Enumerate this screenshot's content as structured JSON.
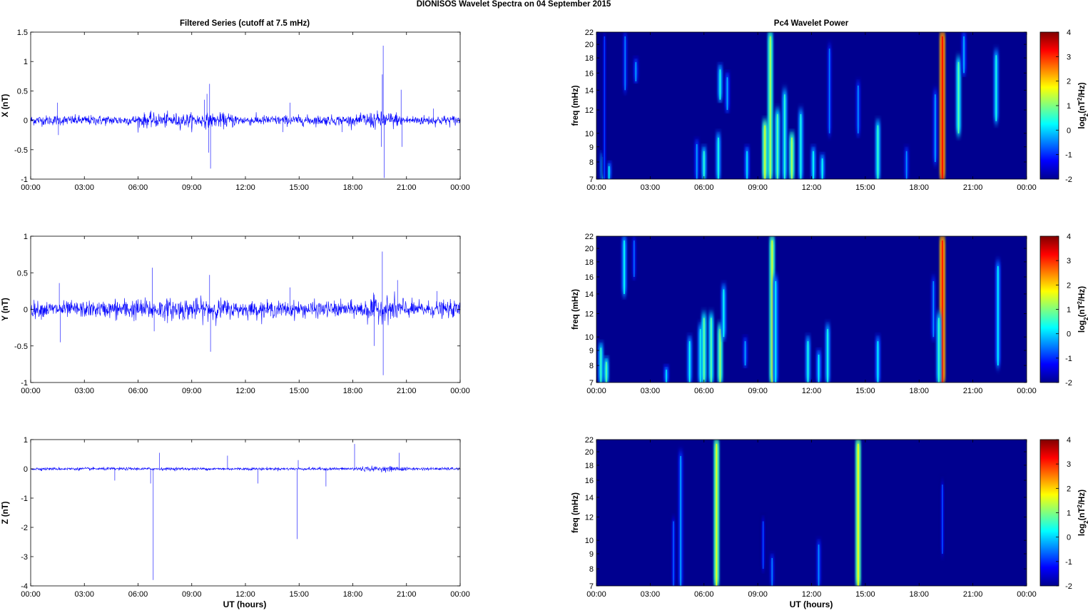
{
  "figure": {
    "title": "DIONISOS Wavelet Spectra on 04 September 2015",
    "left_column_title": "Filtered Series (cutoff at 7.5 mHz)",
    "right_column_title": "Pc4 Wavelet Power",
    "xlabel": "UT (hours)",
    "colors": {
      "trace": "#0000ff",
      "background_power": "#00008f"
    }
  },
  "chart_data": [
    {
      "type": "line",
      "ylabel": "X (nT)",
      "x_ticks": [
        "00:00",
        "03:00",
        "06:00",
        "09:00",
        "12:00",
        "15:00",
        "18:00",
        "21:00",
        "00:00"
      ],
      "x_range_hours": [
        0,
        24
      ],
      "ylim": [
        -1,
        1.5
      ],
      "y_ticks": [
        "-1",
        "-0.5",
        "0",
        "0.5",
        "1",
        "1.5"
      ],
      "noise_amplitude": 0.07,
      "active_intervals": [
        {
          "start": 6.0,
          "end": 11.5,
          "amp": 0.1
        },
        {
          "start": 18.5,
          "end": 20.5,
          "amp": 0.12
        }
      ],
      "spikes": [
        {
          "t": 9.7,
          "v": 0.35
        },
        {
          "t": 9.85,
          "v": 0.45
        },
        {
          "t": 10.0,
          "v": 0.62
        },
        {
          "t": 9.95,
          "v": -0.55
        },
        {
          "t": 10.05,
          "v": -0.82
        },
        {
          "t": 19.7,
          "v": 1.27
        },
        {
          "t": 19.65,
          "v": 0.78
        },
        {
          "t": 19.75,
          "v": -0.98
        },
        {
          "t": 19.6,
          "v": -0.45
        },
        {
          "t": 20.7,
          "v": 0.52
        },
        {
          "t": 20.75,
          "v": -0.45
        },
        {
          "t": 1.5,
          "v": 0.3
        },
        {
          "t": 1.55,
          "v": -0.25
        },
        {
          "t": 14.1,
          "v": -0.2
        },
        {
          "t": 14.5,
          "v": 0.3
        },
        {
          "t": 17.4,
          "v": -0.2
        },
        {
          "t": 22.5,
          "v": 0.2
        }
      ]
    },
    {
      "type": "line",
      "ylabel": "Y (nT)",
      "x_ticks": [
        "00:00",
        "03:00",
        "06:00",
        "09:00",
        "12:00",
        "15:00",
        "18:00",
        "21:00",
        "00:00"
      ],
      "x_range_hours": [
        0,
        24
      ],
      "ylim": [
        -1,
        1
      ],
      "y_ticks": [
        "-1",
        "-0.5",
        "0",
        "0.5",
        "1"
      ],
      "noise_amplitude": 0.09,
      "active_intervals": [
        {
          "start": 4.5,
          "end": 11.0,
          "amp": 0.12
        },
        {
          "start": 18.5,
          "end": 21.0,
          "amp": 0.14
        }
      ],
      "spikes": [
        {
          "t": 1.6,
          "v": 0.36
        },
        {
          "t": 1.65,
          "v": -0.45
        },
        {
          "t": 6.8,
          "v": 0.57
        },
        {
          "t": 6.9,
          "v": -0.3
        },
        {
          "t": 10.0,
          "v": 0.47
        },
        {
          "t": 10.05,
          "v": -0.58
        },
        {
          "t": 19.65,
          "v": 0.79
        },
        {
          "t": 19.7,
          "v": -0.9
        },
        {
          "t": 19.2,
          "v": -0.5
        },
        {
          "t": 14.5,
          "v": 0.3
        },
        {
          "t": 22.7,
          "v": 0.25
        },
        {
          "t": 20.5,
          "v": 0.4
        }
      ]
    },
    {
      "type": "line",
      "ylabel": "Z (nT)",
      "x_ticks": [
        "00:00",
        "03:00",
        "06:00",
        "09:00",
        "12:00",
        "15:00",
        "18:00",
        "21:00",
        "00:00"
      ],
      "x_range_hours": [
        0,
        24
      ],
      "ylim": [
        -4,
        1
      ],
      "y_ticks": [
        "-4",
        "-3",
        "-2",
        "-1",
        "0",
        "1"
      ],
      "noise_amplitude": 0.04,
      "active_intervals": [
        {
          "start": 18.0,
          "end": 21.0,
          "amp": 0.07
        }
      ],
      "spikes": [
        {
          "t": 6.85,
          "v": -3.8
        },
        {
          "t": 6.7,
          "v": -0.5
        },
        {
          "t": 7.2,
          "v": 0.55
        },
        {
          "t": 14.9,
          "v": -2.4
        },
        {
          "t": 14.95,
          "v": 0.3
        },
        {
          "t": 18.1,
          "v": 0.85
        },
        {
          "t": 20.6,
          "v": 0.55
        },
        {
          "t": 4.7,
          "v": -0.4
        },
        {
          "t": 11.0,
          "v": 0.45
        },
        {
          "t": 12.7,
          "v": -0.5
        },
        {
          "t": 16.5,
          "v": -0.6
        }
      ]
    },
    {
      "type": "heatmap",
      "ylabel": "freq (mHz)",
      "colorbar_label": "log2(nT2/Hz)",
      "x_ticks": [
        "00:00",
        "03:00",
        "06:00",
        "09:00",
        "12:00",
        "15:00",
        "18:00",
        "21:00",
        "00:00"
      ],
      "x_range_hours": [
        0,
        24
      ],
      "y_log_scale": true,
      "ylim_mHz": [
        7,
        22
      ],
      "y_ticks": [
        "7",
        "8",
        "9",
        "10",
        "12",
        "14",
        "16",
        "18",
        "20",
        "22"
      ],
      "color_range": [
        -2,
        4
      ],
      "color_ticks": [
        "-2",
        "-1",
        "0",
        "1",
        "2",
        "3",
        "4"
      ],
      "colormap": "jet",
      "bursts": [
        {
          "t": 0.35,
          "fmin": 7,
          "fmax": 8.6,
          "level": 0.4
        },
        {
          "t": 0.7,
          "fmin": 7,
          "fmax": 8,
          "level": 0.2
        },
        {
          "t": 0.45,
          "fmin": 7,
          "fmax": 22,
          "level": -0.9
        },
        {
          "t": 1.6,
          "fmin": 14,
          "fmax": 22,
          "level": -0.5
        },
        {
          "t": 2.2,
          "fmin": 15,
          "fmax": 18,
          "level": -0.3
        },
        {
          "t": 5.6,
          "fmin": 7,
          "fmax": 9.5,
          "level": -0.3
        },
        {
          "t": 6.0,
          "fmin": 7,
          "fmax": 9,
          "level": 0.5
        },
        {
          "t": 6.8,
          "fmin": 7,
          "fmax": 10,
          "level": 0.4
        },
        {
          "t": 6.9,
          "fmin": 13,
          "fmax": 17,
          "level": 0.4
        },
        {
          "t": 7.3,
          "fmin": 12,
          "fmax": 16,
          "level": -0.2
        },
        {
          "t": 8.4,
          "fmin": 7,
          "fmax": 9,
          "level": 0.1
        },
        {
          "t": 9.4,
          "fmin": 7,
          "fmax": 11,
          "level": 1.5
        },
        {
          "t": 9.7,
          "fmin": 7,
          "fmax": 22,
          "level": 1.3
        },
        {
          "t": 10.1,
          "fmin": 7,
          "fmax": 12,
          "level": 0.8
        },
        {
          "t": 10.5,
          "fmin": 7,
          "fmax": 14,
          "level": 0.5
        },
        {
          "t": 10.9,
          "fmin": 7,
          "fmax": 10,
          "level": 1.3
        },
        {
          "t": 11.4,
          "fmin": 7,
          "fmax": 12,
          "level": 0.4
        },
        {
          "t": 12.1,
          "fmin": 7,
          "fmax": 9,
          "level": 0.3
        },
        {
          "t": 12.6,
          "fmin": 7,
          "fmax": 8.5,
          "level": 0.3
        },
        {
          "t": 13.0,
          "fmin": 10,
          "fmax": 20,
          "level": -0.5
        },
        {
          "t": 14.6,
          "fmin": 10,
          "fmax": 15,
          "level": -0.4
        },
        {
          "t": 15.7,
          "fmin": 7,
          "fmax": 11,
          "level": 0.6
        },
        {
          "t": 17.3,
          "fmin": 7,
          "fmax": 9,
          "level": -0.4
        },
        {
          "t": 18.9,
          "fmin": 8,
          "fmax": 14,
          "level": -0.3
        },
        {
          "t": 19.3,
          "fmin": 7,
          "fmax": 22,
          "level": 3.3
        },
        {
          "t": 20.2,
          "fmin": 10,
          "fmax": 18,
          "level": 0.8
        },
        {
          "t": 20.5,
          "fmin": 16,
          "fmax": 22,
          "level": -0.2
        },
        {
          "t": 22.3,
          "fmin": 11,
          "fmax": 19,
          "level": 0.4
        }
      ]
    },
    {
      "type": "heatmap",
      "ylabel": "freq (mHz)",
      "colorbar_label": "log2(nT2/Hz)",
      "x_ticks": [
        "00:00",
        "03:00",
        "06:00",
        "09:00",
        "12:00",
        "15:00",
        "18:00",
        "21:00",
        "00:00"
      ],
      "x_range_hours": [
        0,
        24
      ],
      "y_log_scale": true,
      "ylim_mHz": [
        7,
        22
      ],
      "y_ticks": [
        "7",
        "8",
        "9",
        "10",
        "12",
        "14",
        "16",
        "18",
        "20",
        "22"
      ],
      "color_range": [
        -2,
        4
      ],
      "color_ticks": [
        "-2",
        "-1",
        "0",
        "1",
        "2",
        "3",
        "4"
      ],
      "colormap": "jet",
      "bursts": [
        {
          "t": 0.25,
          "fmin": 7,
          "fmax": 9.5,
          "level": 0.6
        },
        {
          "t": 0.55,
          "fmin": 7,
          "fmax": 8.5,
          "level": 0.8
        },
        {
          "t": 1.55,
          "fmin": 14,
          "fmax": 22,
          "level": 0.3
        },
        {
          "t": 2.1,
          "fmin": 16,
          "fmax": 22,
          "level": -0.6
        },
        {
          "t": 3.9,
          "fmin": 7,
          "fmax": 8,
          "level": 0.1
        },
        {
          "t": 5.2,
          "fmin": 7,
          "fmax": 10,
          "level": 0.3
        },
        {
          "t": 5.8,
          "fmin": 7,
          "fmax": 11,
          "level": 0.4
        },
        {
          "t": 6.0,
          "fmin": 7,
          "fmax": 12,
          "level": 0.9
        },
        {
          "t": 6.4,
          "fmin": 7,
          "fmax": 12,
          "level": 0.8
        },
        {
          "t": 6.9,
          "fmin": 7,
          "fmax": 11,
          "level": 1.2
        },
        {
          "t": 7.1,
          "fmin": 10,
          "fmax": 15,
          "level": 0.3
        },
        {
          "t": 8.3,
          "fmin": 8,
          "fmax": 10,
          "level": -0.3
        },
        {
          "t": 9.8,
          "fmin": 7,
          "fmax": 22,
          "level": 1.5
        },
        {
          "t": 10.0,
          "fmin": 7,
          "fmax": 16,
          "level": 0.2
        },
        {
          "t": 11.8,
          "fmin": 7,
          "fmax": 10,
          "level": 0.4
        },
        {
          "t": 12.4,
          "fmin": 7,
          "fmax": 9,
          "level": 0.2
        },
        {
          "t": 12.9,
          "fmin": 7,
          "fmax": 11,
          "level": 0.4
        },
        {
          "t": 15.7,
          "fmin": 7,
          "fmax": 10,
          "level": 0.2
        },
        {
          "t": 18.8,
          "fmin": 10,
          "fmax": 16,
          "level": -0.4
        },
        {
          "t": 19.3,
          "fmin": 7,
          "fmax": 22,
          "level": 3.2
        },
        {
          "t": 19.1,
          "fmin": 7,
          "fmax": 12,
          "level": 0.6
        },
        {
          "t": 22.4,
          "fmin": 8,
          "fmax": 18,
          "level": 0.2
        }
      ]
    },
    {
      "type": "heatmap",
      "ylabel": "freq (mHz)",
      "colorbar_label": "log2(nT2/Hz)",
      "x_ticks": [
        "00:00",
        "03:00",
        "06:00",
        "09:00",
        "12:00",
        "15:00",
        "18:00",
        "21:00",
        "00:00"
      ],
      "x_range_hours": [
        0,
        24
      ],
      "y_log_scale": true,
      "ylim_mHz": [
        7,
        22
      ],
      "y_ticks": [
        "7",
        "8",
        "9",
        "10",
        "12",
        "14",
        "16",
        "18",
        "20",
        "22"
      ],
      "color_range": [
        -2,
        4
      ],
      "color_ticks": [
        "-2",
        "-1",
        "0",
        "1",
        "2",
        "3",
        "4"
      ],
      "colormap": "jet",
      "bursts": [
        {
          "t": 4.3,
          "fmin": 7,
          "fmax": 12,
          "level": -0.7
        },
        {
          "t": 4.7,
          "fmin": 7,
          "fmax": 20,
          "level": -0.3
        },
        {
          "t": 6.7,
          "fmin": 7,
          "fmax": 22,
          "level": 1.6
        },
        {
          "t": 9.3,
          "fmin": 8,
          "fmax": 12,
          "level": -0.8
        },
        {
          "t": 9.8,
          "fmin": 7,
          "fmax": 9,
          "level": -0.5
        },
        {
          "t": 12.4,
          "fmin": 7,
          "fmax": 10,
          "level": -0.4
        },
        {
          "t": 14.6,
          "fmin": 7,
          "fmax": 22,
          "level": 1.7
        },
        {
          "t": 19.3,
          "fmin": 9,
          "fmax": 16,
          "level": -0.8
        }
      ]
    }
  ]
}
